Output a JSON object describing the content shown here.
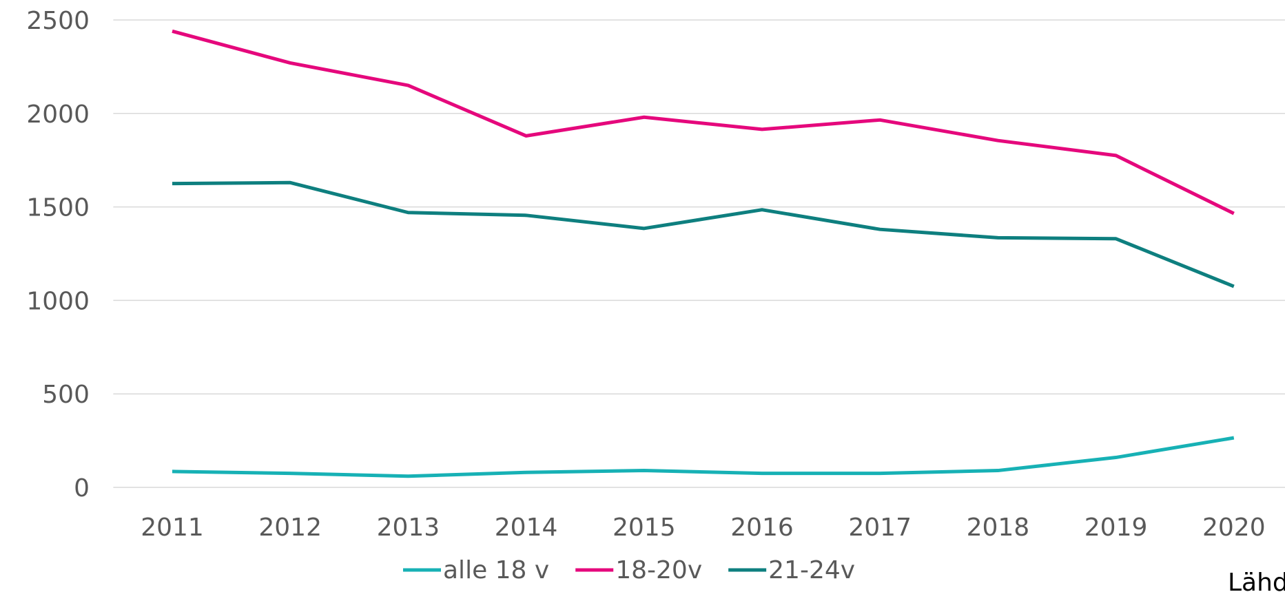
{
  "chart_data": {
    "type": "line",
    "categories": [
      "2011",
      "2012",
      "2013",
      "2014",
      "2015",
      "2016",
      "2017",
      "2018",
      "2019",
      "2020"
    ],
    "series": [
      {
        "name": "alle 18 v",
        "color": "#17b1b5",
        "values": [
          85,
          75,
          60,
          80,
          90,
          75,
          75,
          90,
          160,
          265
        ]
      },
      {
        "name": "18-20v",
        "color": "#e5087c",
        "values": [
          2440,
          2270,
          2150,
          1880,
          1980,
          1915,
          1965,
          1855,
          1775,
          1465
        ]
      },
      {
        "name": "21-24v",
        "color": "#0e7f7f",
        "values": [
          1625,
          1630,
          1470,
          1455,
          1385,
          1485,
          1380,
          1335,
          1330,
          1075
        ]
      }
    ],
    "ylim": [
      0,
      2500
    ],
    "yticks": [
      0,
      500,
      1000,
      1500,
      2000,
      2500
    ],
    "grid": true,
    "legend": "bottom",
    "source": "Lähd"
  }
}
